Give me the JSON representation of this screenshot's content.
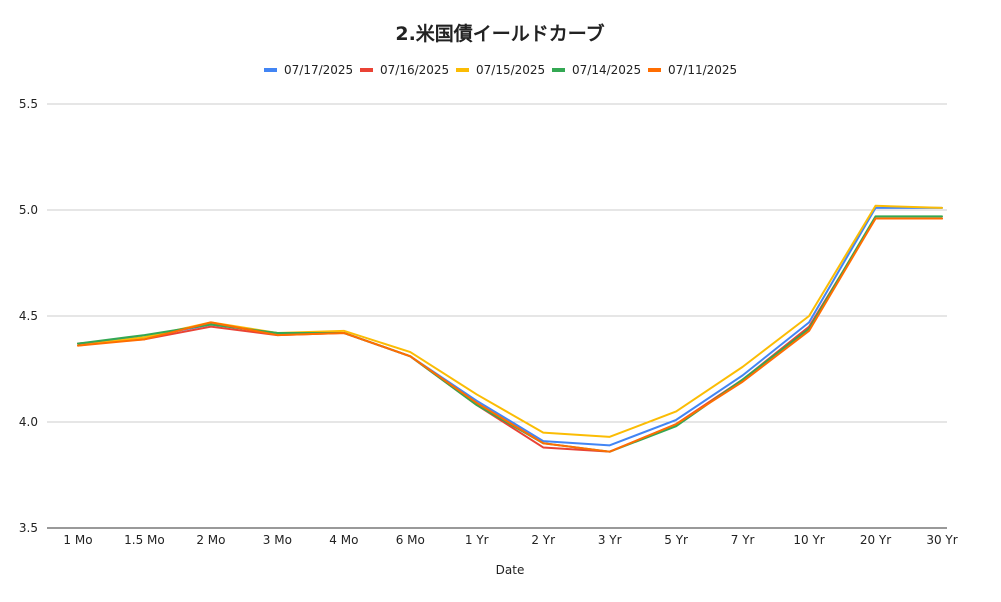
{
  "chart_data": {
    "type": "line",
    "title": "2.米国債イールドカーブ",
    "xlabel": "Date",
    "ylabel": "",
    "categories": [
      "1 Mo",
      "1.5 Mo",
      "2 Mo",
      "3 Mo",
      "4 Mo",
      "6 Mo",
      "1 Yr",
      "2 Yr",
      "3 Yr",
      "5 Yr",
      "7 Yr",
      "10 Yr",
      "20 Yr",
      "30 Yr"
    ],
    "ylim": [
      3.5,
      5.5
    ],
    "yticks": [
      "3.5",
      "4.0",
      "4.5",
      "5.0",
      "5.5"
    ],
    "grid": true,
    "legend_position": "top",
    "series": [
      {
        "name": "07/17/2025",
        "color": "#4285F4",
        "values": [
          4.37,
          4.4,
          4.46,
          4.42,
          4.42,
          4.31,
          4.1,
          3.91,
          3.89,
          4.01,
          4.22,
          4.47,
          5.01,
          5.01
        ]
      },
      {
        "name": "07/16/2025",
        "color": "#EA4335",
        "values": [
          4.37,
          4.39,
          4.45,
          4.41,
          4.42,
          4.31,
          4.08,
          3.88,
          3.86,
          3.99,
          4.2,
          4.45,
          4.96,
          4.96
        ]
      },
      {
        "name": "07/15/2025",
        "color": "#FBBC04",
        "values": [
          4.36,
          4.4,
          4.47,
          4.42,
          4.43,
          4.33,
          4.13,
          3.95,
          3.93,
          4.05,
          4.26,
          4.5,
          5.02,
          5.01
        ]
      },
      {
        "name": "07/14/2025",
        "color": "#34A853",
        "values": [
          4.37,
          4.41,
          4.46,
          4.42,
          4.42,
          4.31,
          4.08,
          3.9,
          3.86,
          3.98,
          4.2,
          4.44,
          4.97,
          4.97
        ]
      },
      {
        "name": "07/11/2025",
        "color": "#FF6D01",
        "values": [
          4.36,
          4.39,
          4.47,
          4.41,
          4.42,
          4.31,
          4.09,
          3.9,
          3.86,
          3.99,
          4.19,
          4.43,
          4.96,
          4.96
        ]
      }
    ]
  }
}
